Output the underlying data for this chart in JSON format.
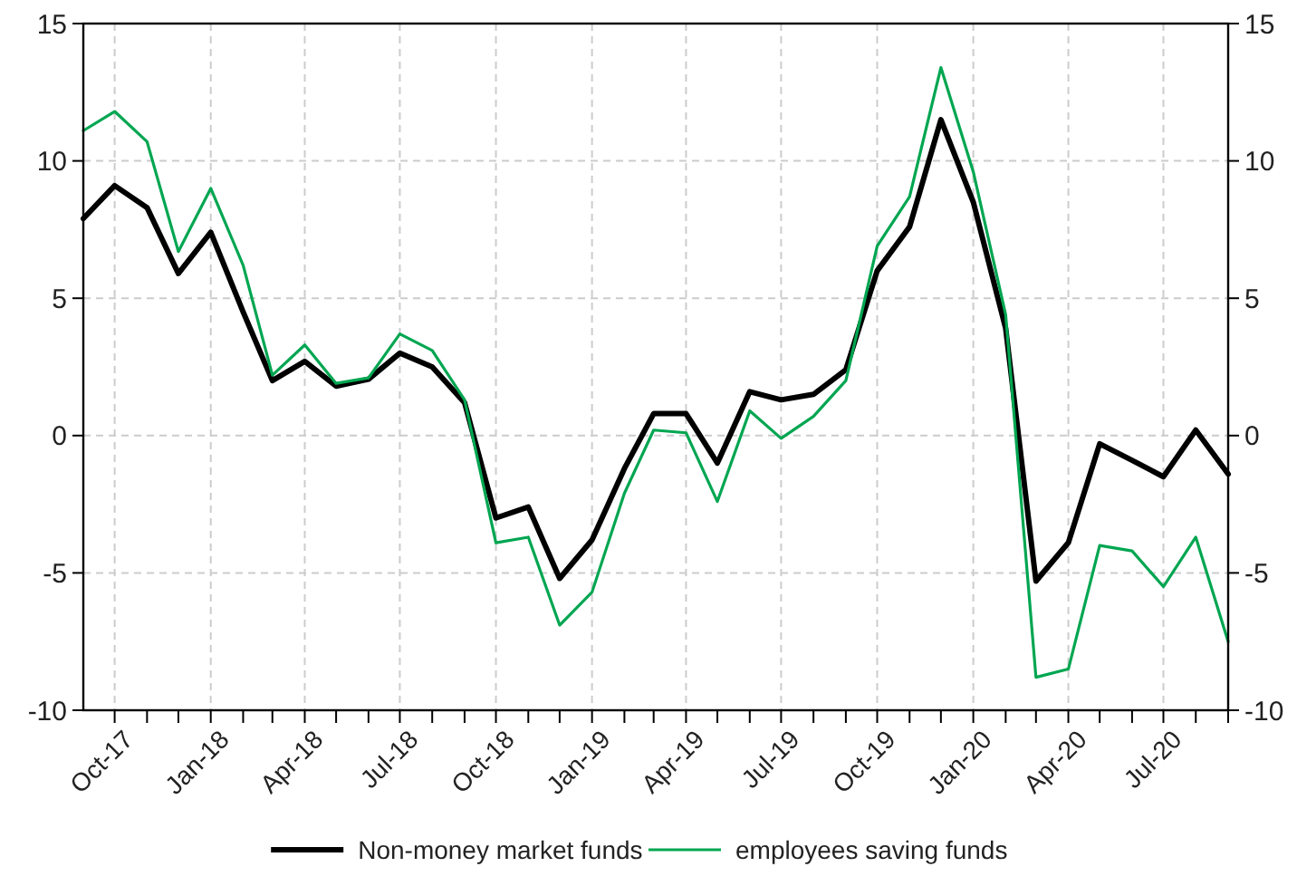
{
  "chart_data": {
    "type": "line",
    "x": [
      "2017-09",
      "2017-10",
      "2017-11",
      "2017-12",
      "2018-01",
      "2018-02",
      "2018-03",
      "2018-04",
      "2018-05",
      "2018-06",
      "2018-07",
      "2018-08",
      "2018-09",
      "2018-10",
      "2018-11",
      "2018-12",
      "2019-01",
      "2019-02",
      "2019-03",
      "2019-04",
      "2019-05",
      "2019-06",
      "2019-07",
      "2019-08",
      "2019-09",
      "2019-10",
      "2019-11",
      "2019-12",
      "2020-01",
      "2020-02",
      "2020-03",
      "2020-04",
      "2020-05",
      "2020-06",
      "2020-07",
      "2020-08",
      "2020-09"
    ],
    "series": [
      {
        "name": "Non-money market funds",
        "color": "#000000",
        "values": [
          7.9,
          9.1,
          8.3,
          5.9,
          7.4,
          4.5,
          2.0,
          2.7,
          1.8,
          2.05,
          3.0,
          2.5,
          1.2,
          -3.0,
          -2.6,
          -5.2,
          -3.8,
          -1.2,
          0.8,
          0.8,
          -1.0,
          1.6,
          1.3,
          1.5,
          2.4,
          6.0,
          7.6,
          11.5,
          8.5,
          3.9,
          -5.3,
          -3.9,
          -0.3,
          -0.9,
          -1.5,
          0.2,
          -1.4
        ]
      },
      {
        "name": "employees saving funds",
        "color": "#00a651",
        "values": [
          11.1,
          11.8,
          10.7,
          6.7,
          9.0,
          6.2,
          2.2,
          3.3,
          1.9,
          2.1,
          3.7,
          3.1,
          1.3,
          -3.9,
          -3.7,
          -6.9,
          -5.7,
          -2.1,
          0.2,
          0.1,
          -2.4,
          0.9,
          -0.1,
          0.7,
          2.0,
          6.9,
          8.7,
          13.4,
          9.6,
          4.4,
          -8.8,
          -8.5,
          -4.0,
          -4.2,
          -5.5,
          -3.7,
          -7.5
        ]
      }
    ],
    "xlim": [
      "2017-09",
      "2020-09"
    ],
    "xticks": [
      {
        "value": "2017-10",
        "label": "Oct-17"
      },
      {
        "value": "2017-11",
        "label": null
      },
      {
        "value": "2017-12",
        "label": null
      },
      {
        "value": "2018-01",
        "label": "Jan-18"
      },
      {
        "value": "2018-02",
        "label": null
      },
      {
        "value": "2018-03",
        "label": null
      },
      {
        "value": "2018-04",
        "label": "Apr-18"
      },
      {
        "value": "2018-05",
        "label": null
      },
      {
        "value": "2018-06",
        "label": null
      },
      {
        "value": "2018-07",
        "label": "Jul-18"
      },
      {
        "value": "2018-08",
        "label": null
      },
      {
        "value": "2018-09",
        "label": null
      },
      {
        "value": "2018-10",
        "label": "Oct-18"
      },
      {
        "value": "2018-11",
        "label": null
      },
      {
        "value": "2018-12",
        "label": null
      },
      {
        "value": "2019-01",
        "label": "Jan-19"
      },
      {
        "value": "2019-02",
        "label": null
      },
      {
        "value": "2019-03",
        "label": null
      },
      {
        "value": "2019-04",
        "label": "Apr-19"
      },
      {
        "value": "2019-05",
        "label": null
      },
      {
        "value": "2019-06",
        "label": null
      },
      {
        "value": "2019-07",
        "label": "Jul-19"
      },
      {
        "value": "2019-08",
        "label": null
      },
      {
        "value": "2019-09",
        "label": null
      },
      {
        "value": "2019-10",
        "label": "Oct-19"
      },
      {
        "value": "2019-11",
        "label": null
      },
      {
        "value": "2019-12",
        "label": null
      },
      {
        "value": "2020-01",
        "label": "Jan-20"
      },
      {
        "value": "2020-02",
        "label": null
      },
      {
        "value": "2020-03",
        "label": null
      },
      {
        "value": "2020-04",
        "label": "Apr-20"
      },
      {
        "value": "2020-05",
        "label": null
      },
      {
        "value": "2020-06",
        "label": null
      },
      {
        "value": "2020-07",
        "label": "Jul-20"
      },
      {
        "value": "2020-08",
        "label": null
      },
      {
        "value": "2020-09",
        "label": null
      }
    ],
    "ylim": [
      -10,
      15
    ],
    "yticks": [
      -10,
      -5,
      0,
      5,
      10,
      15
    ],
    "y2lim": [
      -10,
      15
    ],
    "y2ticks": [
      -10,
      -5,
      0,
      5,
      10,
      15
    ],
    "grid": true,
    "legend": "bottom",
    "marker": "none",
    "line_style": "solid"
  }
}
